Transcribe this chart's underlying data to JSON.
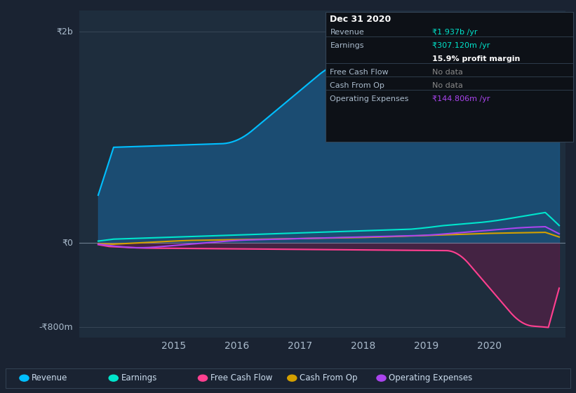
{
  "bg_color": "#1a2332",
  "chart_bg": "#1e2d3d",
  "ylabel_top": "₹2b",
  "ylabel_zero": "₹0",
  "ylabel_bottom": "-₹800m",
  "xlim": [
    2013.5,
    2021.2
  ],
  "ylim": [
    -900,
    2200
  ],
  "revenue_color": "#00bfff",
  "revenue_fill": "#1a5a8a",
  "earnings_color": "#00e5cc",
  "free_cash_color": "#ff4090",
  "free_cash_fill": "#6a1a4a",
  "cash_from_op_color": "#d4a000",
  "op_expenses_color": "#aa44ee",
  "legend_labels": [
    "Revenue",
    "Earnings",
    "Free Cash Flow",
    "Cash From Op",
    "Operating Expenses"
  ],
  "legend_colors": [
    "#00bfff",
    "#00e5cc",
    "#ff4090",
    "#d4a000",
    "#aa44ee"
  ],
  "x_ticks": [
    2015,
    2016,
    2017,
    2018,
    2019,
    2020
  ],
  "tooltip_title": "Dec 31 2020",
  "tooltip_rows": [
    {
      "label": "Revenue",
      "value": "₹1.937b /yr",
      "value_color": "#00e5cc",
      "bold": false
    },
    {
      "label": "Earnings",
      "value": "₹307.120m /yr",
      "value_color": "#00e5cc",
      "bold": false
    },
    {
      "label": "",
      "value": "15.9% profit margin",
      "value_color": "#ffffff",
      "bold": true
    },
    {
      "label": "Free Cash Flow",
      "value": "No data",
      "value_color": "#888888",
      "bold": false
    },
    {
      "label": "Cash From Op",
      "value": "No data",
      "value_color": "#888888",
      "bold": false
    },
    {
      "label": "Operating Expenses",
      "value": "₹144.806m /yr",
      "value_color": "#aa44ee",
      "bold": false
    }
  ]
}
